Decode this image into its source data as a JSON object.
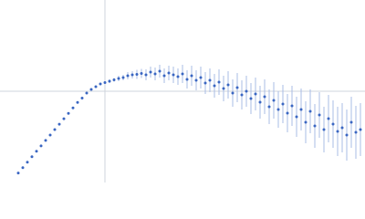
{
  "chart_data": {
    "type": "scatter",
    "x": [
      20,
      25,
      30,
      35,
      40,
      45,
      50,
      55,
      60,
      65,
      70,
      75,
      80,
      85,
      90,
      95,
      100,
      105,
      110,
      115,
      120,
      125,
      130,
      135,
      140,
      145,
      150,
      155,
      160,
      165,
      170,
      175,
      180,
      185,
      190,
      195,
      200,
      205,
      210,
      215,
      220,
      225,
      230,
      235,
      240,
      245,
      250,
      255,
      260,
      265,
      270,
      275,
      280,
      285,
      290,
      295,
      300,
      305,
      310,
      315,
      320,
      325,
      330,
      335,
      340,
      345,
      350,
      355,
      360,
      365,
      370,
      375,
      380,
      385,
      390,
      395
    ],
    "series": [
      {
        "color": "#3a66c2",
        "error_color": "#a9bde6",
        "values": [
          10.4,
          16.3,
          22.3,
          28.2,
          34.2,
          40.1,
          46.1,
          52,
          58,
          63.9,
          69.9,
          75.8,
          81.8,
          87.7,
          92.5,
          98,
          102,
          105,
          108,
          109.5,
          111,
          112.5,
          114,
          115,
          117,
          118,
          118.5,
          119.5,
          118,
          121,
          119,
          122,
          117,
          120,
          118,
          116,
          119,
          113,
          117,
          112,
          115,
          109,
          112,
          106,
          110,
          103,
          107,
          98,
          104,
          96,
          100,
          92,
          97,
          88,
          94,
          83,
          90,
          80,
          86,
          76,
          84,
          72,
          80,
          66,
          78,
          62,
          74,
          58,
          70,
          64,
          56,
          60,
          52,
          66,
          55,
          58
        ],
        "errors": [
          1,
          1,
          1,
          1,
          1,
          1,
          1,
          1,
          1,
          1,
          1,
          1,
          1,
          1,
          1,
          1,
          1,
          1,
          1,
          1,
          2,
          2,
          3,
          3,
          4,
          4,
          5,
          5,
          6,
          6,
          7,
          7,
          8,
          8,
          9,
          9,
          10,
          10,
          11,
          11,
          12,
          12,
          13,
          13,
          14,
          14,
          15,
          15,
          16,
          16,
          17,
          17,
          18,
          18,
          19,
          19,
          20,
          20,
          21,
          21,
          22,
          22,
          23,
          23,
          24,
          24,
          25,
          25,
          26,
          26,
          27,
          27,
          28,
          28,
          29,
          29
        ]
      }
    ],
    "xlim": [
      0,
      400
    ],
    "ylim": [
      0,
      200
    ],
    "crosshair": {
      "x": 115,
      "y": 100,
      "color": "#cfd4dc"
    }
  }
}
